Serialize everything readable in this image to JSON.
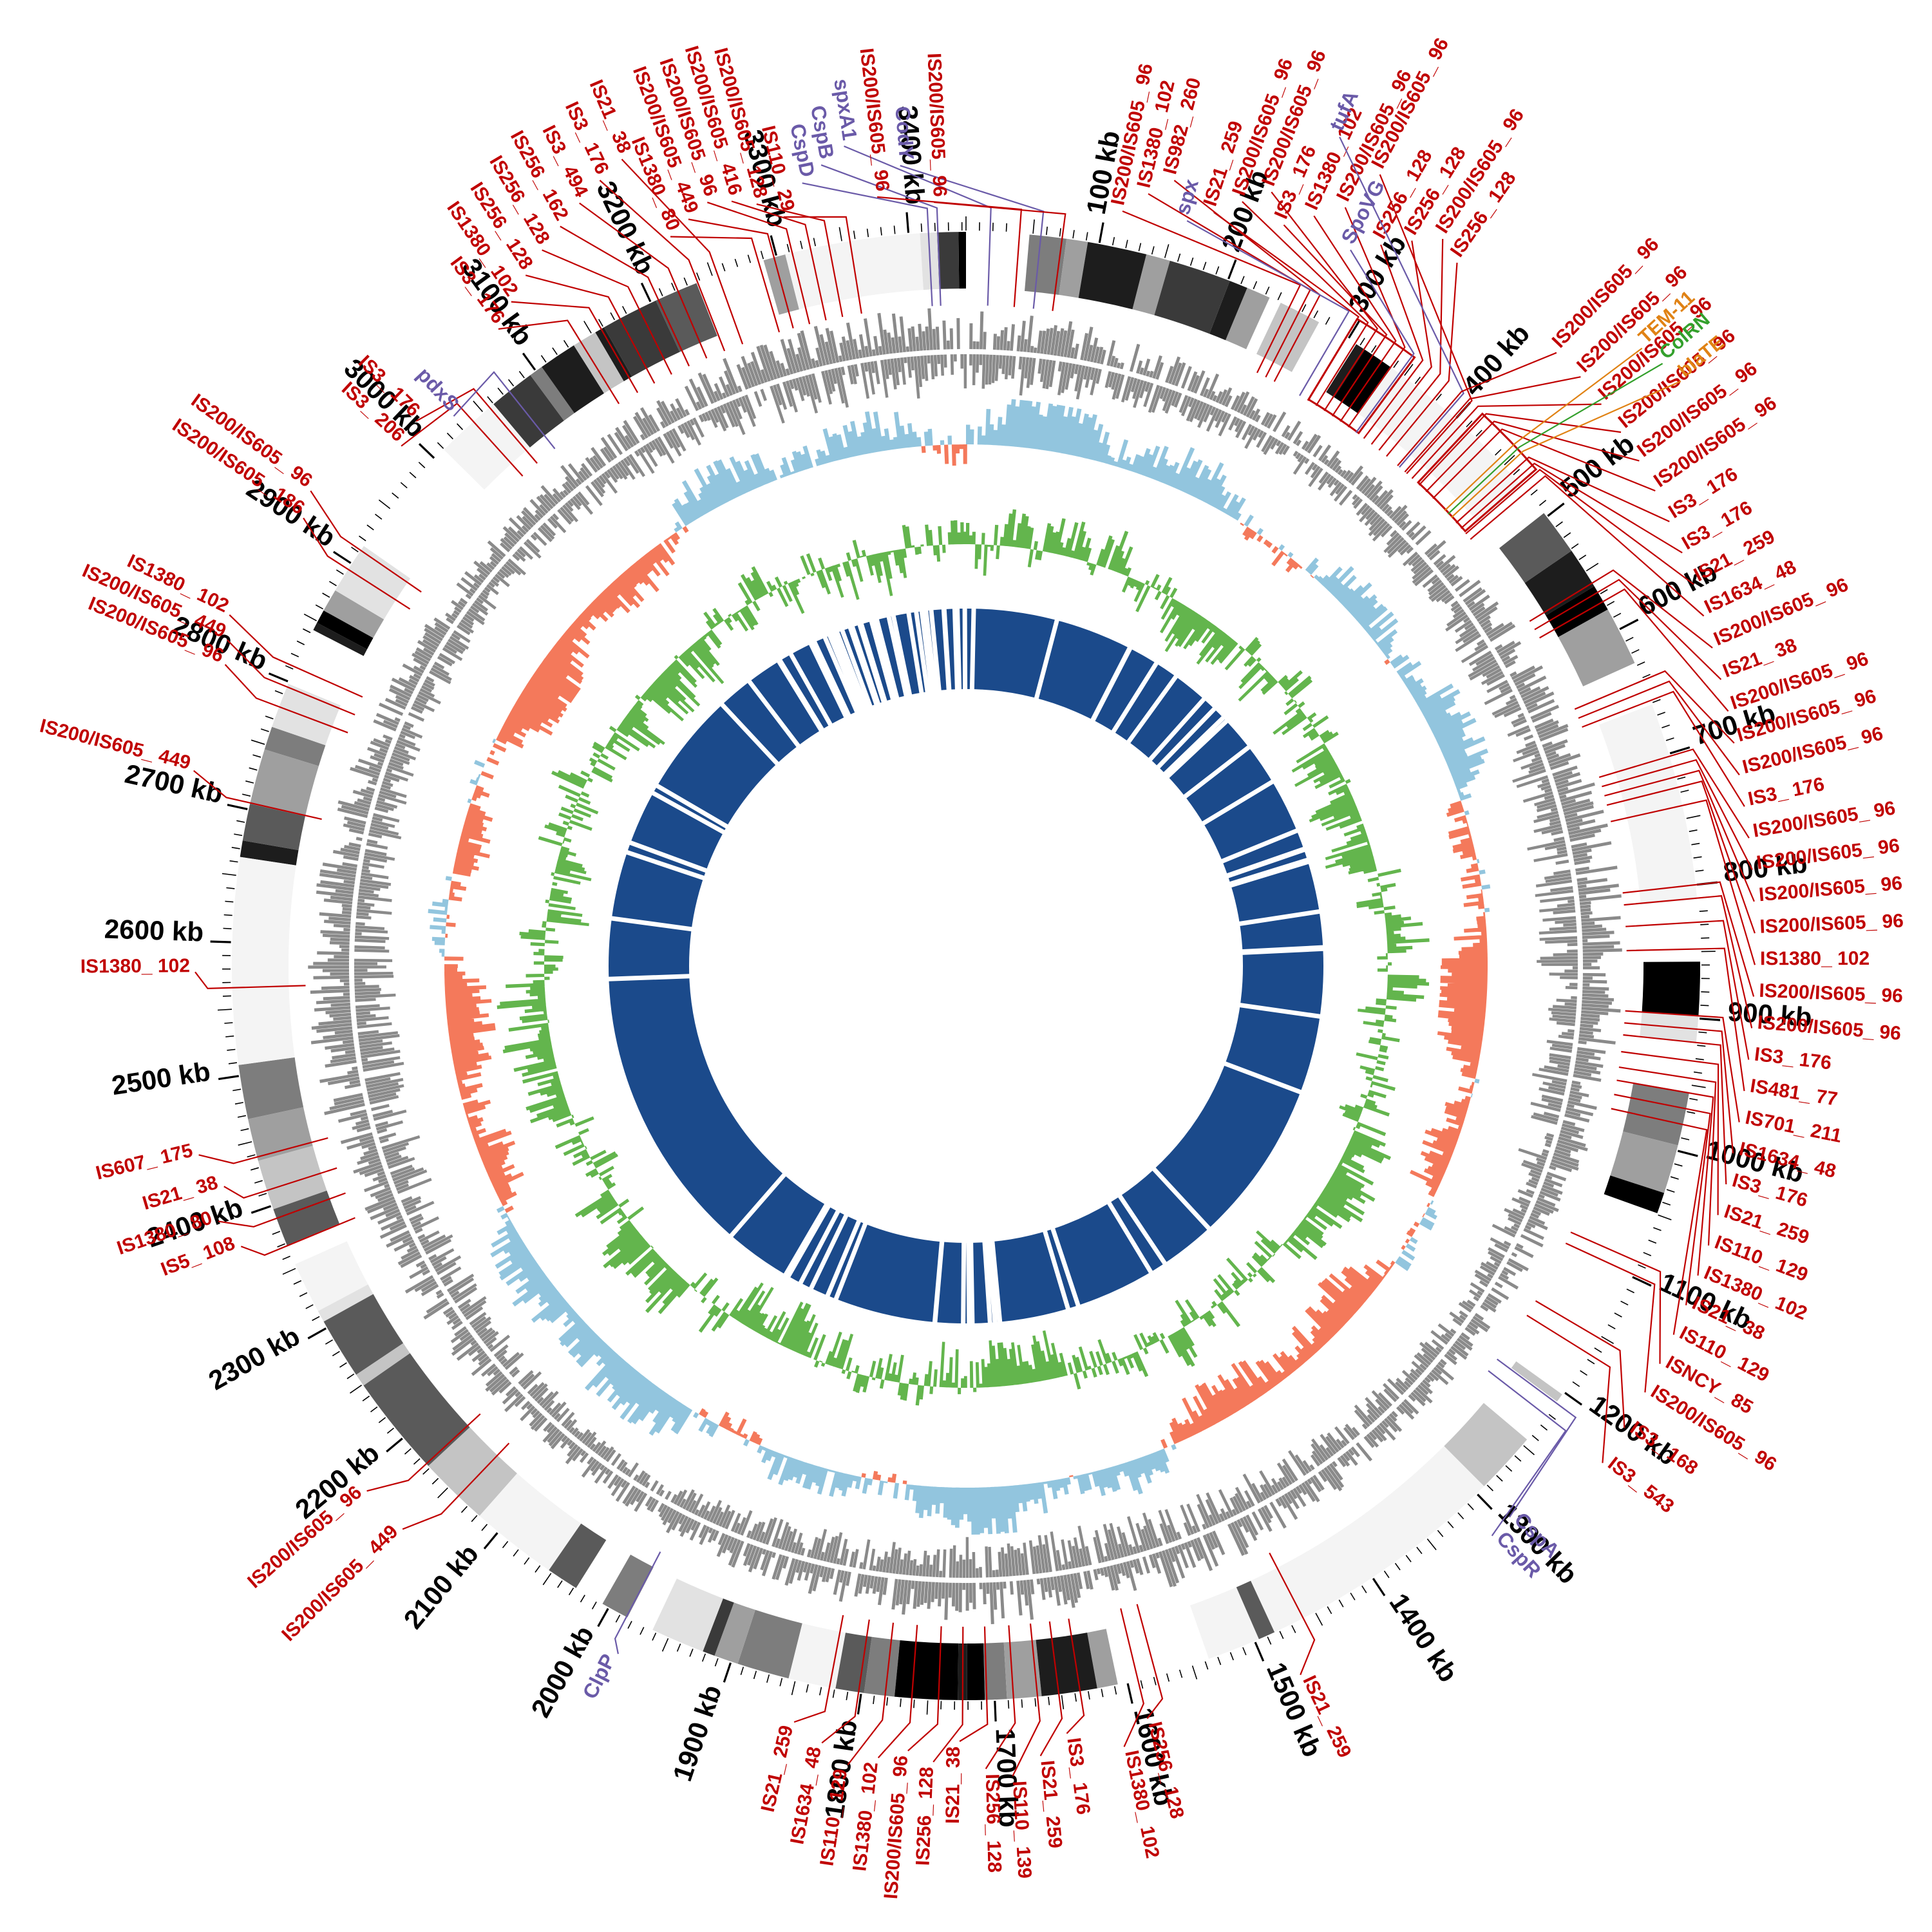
{
  "chart_data": {
    "type": "circular-genome-map",
    "genome_length_kb": 3443,
    "axis": {
      "unit": "kb",
      "tick_interval_kb": 100,
      "minor_tick_kb": 10,
      "font_size": 42,
      "labels": [
        "100 kb",
        "200 kb",
        "300 kb",
        "400 kb",
        "500 kb",
        "600 kb",
        "700 kb",
        "800 kb",
        "900 kb",
        "1000 kb",
        "1100 kb",
        "1200 kb",
        "1300 kb",
        "1400 kb",
        "1500 kb",
        "1600 kb",
        "1700 kb",
        "1800 kb",
        "1900 kb",
        "2000 kb",
        "2100 kb",
        "2200 kb",
        "2300 kb",
        "2400 kb",
        "2500 kb",
        "2600 kb",
        "2700 kb",
        "2800 kb",
        "2900 kb",
        "3000 kb",
        "3100 kb",
        "3200 kb",
        "3300 kb",
        "3400 kb"
      ]
    },
    "tracks": [
      {
        "id": "contig-ring",
        "type": "blocks",
        "desc": "outer grayscale contig / coverage blocks"
      },
      {
        "id": "is-mark-ring",
        "type": "ticks",
        "desc": "red marks at IS element positions"
      },
      {
        "id": "genes-forward",
        "type": "barcode",
        "desc": "gray CDS bars, outer strand row"
      },
      {
        "id": "genes-reverse",
        "type": "barcode",
        "desc": "gray CDS bars, inner strand row"
      },
      {
        "id": "gc-content",
        "type": "diverging-histogram",
        "desc": "blue above mean / orange below mean"
      },
      {
        "id": "gc-skew",
        "type": "diverging-histogram",
        "desc": "green spikes around baseline"
      },
      {
        "id": "core-ring",
        "type": "solid-ring",
        "desc": "navy ring with white gap ticks"
      }
    ],
    "colors": {
      "is_label": "#c00000",
      "gene_label": "#6a5aa8",
      "amr_orange": "#e08214",
      "amr_green": "#33a02c",
      "axis": "#000000",
      "gc_pos": "#92c5de",
      "gc_neg": "#f4795b",
      "skew": "#63b54d",
      "genes_track": "#8a8a8a",
      "core_ring": "#1b4a8b",
      "contig_palette": [
        "#000000",
        "#1d1d1d",
        "#3a3a3a",
        "#5a5a5a",
        "#7d7d7d",
        "#9f9f9f",
        "#c4c4c4",
        "#e2e2e2",
        "#f4f4f4",
        "#ffffff"
      ]
    },
    "highlight_boxes": [
      [
        298,
        348
      ],
      [
        412,
        468
      ]
    ],
    "feature_label_fields": [
      "text",
      "type",
      "target_kb",
      "label_kb",
      "label_radius"
    ],
    "feature_labels": [
      [
        "IS3_ 206",
        "is",
        3040,
        2990,
        1200
      ],
      [
        "IS3_ 176",
        "is",
        3056,
        3010,
        1210
      ],
      [
        "pdxS",
        "gene",
        3075,
        3032,
        1175
      ],
      [
        "IS3_ 176",
        "is",
        3140,
        3096,
        1235
      ],
      [
        "IS1380_ 102",
        "is",
        3158,
        3114,
        1258
      ],
      [
        "IS256_ 128",
        "is",
        3174,
        3132,
        1280
      ],
      [
        "IS256_ 128",
        "is",
        3190,
        3150,
        1300
      ],
      [
        "IS256_ 162",
        "is",
        3206,
        3168,
        1318
      ],
      [
        "IS3_ 494",
        "is",
        3222,
        3186,
        1336
      ],
      [
        "IS3_ 176",
        "is",
        3238,
        3204,
        1354
      ],
      [
        "IS21_ 38",
        "is",
        3254,
        3222,
        1370
      ],
      [
        "IS1380_ 80",
        "is",
        3286,
        3232,
        1230
      ],
      [
        "IS200/IS605_ 449",
        "is",
        3298,
        3248,
        1245
      ],
      [
        "IS200/IS605_ 96",
        "is",
        3312,
        3264,
        1260
      ],
      [
        "IS200/IS605_ 416",
        "is",
        3326,
        3280,
        1250
      ],
      [
        "IS200/IS605_ 128",
        "is",
        3340,
        3296,
        1235
      ],
      [
        "IS110_ 29",
        "is",
        3356,
        3312,
        1205
      ],
      [
        "CspD",
        "gene",
        3415,
        3330,
        1250
      ],
      [
        "CspB",
        "gene",
        3422,
        3345,
        1272
      ],
      [
        "spxA1",
        "gene",
        18,
        3362,
        1295
      ],
      [
        "IS200/IS605_ 96",
        "is",
        40,
        3380,
        1210
      ],
      [
        "CodY",
        "gene",
        56,
        3398,
        1255
      ],
      [
        "IS200/IS605_ 96",
        "is",
        72,
        3420,
        1195
      ],
      [
        "IS200/IS605_ 96",
        "is",
        250,
        112,
        1205
      ],
      [
        "IS1380_ 102",
        "is",
        258,
        127,
        1240
      ],
      [
        "IS982_ 260",
        "is",
        266,
        142,
        1270
      ],
      [
        "spx",
        "gene",
        290,
        158,
        1215
      ],
      [
        "IS21_ 259",
        "is",
        298,
        174,
        1240
      ],
      [
        "IS200/IS605_ 96",
        "is",
        306,
        190,
        1270
      ],
      [
        "IS200/IS605_ 96",
        "is",
        314,
        206,
        1300
      ],
      [
        "IS3_ 176",
        "is",
        322,
        222,
        1260
      ],
      [
        "IS1380_ 102",
        "is",
        330,
        238,
        1292
      ],
      [
        "IS200/IS605_ 96",
        "is",
        338,
        254,
        1325
      ],
      [
        "SpoVG",
        "gene",
        346,
        270,
        1270
      ],
      [
        "IS256_ 128",
        "is",
        354,
        286,
        1300
      ],
      [
        "IS256_ 128",
        "is",
        362,
        302,
        1330
      ],
      [
        "IS200/IS605_ 96",
        "is",
        370,
        318,
        1358
      ],
      [
        "IS256_ 128",
        "is",
        378,
        334,
        1340
      ],
      [
        "tufA",
        "gene",
        392,
        232,
        1420
      ],
      [
        "IS200/IS605_ 96",
        "is",
        400,
        264,
        1395
      ],
      [
        "IS200/IS605_ 96",
        "is",
        390,
        420,
        1330
      ],
      [
        "IS200/IS605_ 96",
        "is",
        398,
        442,
        1330
      ],
      [
        "IS200/IS605_ 96",
        "is",
        406,
        464,
        1325
      ],
      [
        "IS200/IS605_ 96",
        "is",
        414,
        486,
        1320
      ],
      [
        "IS200/IS605_ 96",
        "is",
        422,
        508,
        1315
      ],
      [
        "IS200/IS605_ 96",
        "is",
        430,
        530,
        1308
      ],
      [
        "TEM-11",
        "amr_o",
        444,
        455,
        1430
      ],
      [
        "ColRN",
        "amr_g",
        448,
        470,
        1438
      ],
      [
        "blaTE",
        "amr_o",
        452,
        485,
        1442
      ],
      [
        "IS3_ 176",
        "is",
        458,
        552,
        1300
      ],
      [
        "IS3_ 176",
        "is",
        464,
        574,
        1292
      ],
      [
        "IS21_ 259",
        "is",
        470,
        596,
        1284
      ],
      [
        "IS1634_ 48",
        "is",
        476,
        618,
        1276
      ],
      [
        "IS200/IS605_ 96",
        "is",
        560,
        640,
        1268
      ],
      [
        "IS21_ 38",
        "is",
        568,
        662,
        1262
      ],
      [
        "IS200/IS605_ 96",
        "is",
        576,
        684,
        1256
      ],
      [
        "IS200/IS605_ 96",
        "is",
        642,
        706,
        1250
      ],
      [
        "IS200/IS605_ 96",
        "is",
        650,
        728,
        1245
      ],
      [
        "IS3_ 176",
        "is",
        658,
        750,
        1242
      ],
      [
        "IS200/IS605_ 96",
        "is",
        702,
        772,
        1240
      ],
      [
        "IS200/IS605_ 96",
        "is",
        710,
        794,
        1238
      ],
      [
        "IS200/IS605_ 96",
        "is",
        718,
        816,
        1236
      ],
      [
        "IS200/IS605_ 96",
        "is",
        726,
        838,
        1234
      ],
      [
        "IS1380_ 102",
        "is",
        740,
        860,
        1233
      ],
      [
        "IS200/IS605_ 96",
        "is",
        800,
        882,
        1232
      ],
      [
        "IS200/IS605_ 96",
        "is",
        810,
        904,
        1232
      ],
      [
        "IS3_ 176",
        "is",
        828,
        926,
        1232
      ],
      [
        "IS481_ 77",
        "is",
        848,
        948,
        1232
      ],
      [
        "IS701_ 211",
        "is",
        898,
        970,
        1233
      ],
      [
        "IS1634_ 48",
        "is",
        908,
        992,
        1234
      ],
      [
        "IS3_ 176",
        "is",
        918,
        1014,
        1236
      ],
      [
        "IS21_ 259",
        "is",
        932,
        1036,
        1238
      ],
      [
        "IS110_ 129",
        "is",
        945,
        1058,
        1240
      ],
      [
        "IS1380_ 102",
        "is",
        956,
        1080,
        1242
      ],
      [
        "IS21_ 38",
        "is",
        968,
        1102,
        1244
      ],
      [
        "IS110_ 129",
        "is",
        980,
        1124,
        1247
      ],
      [
        "ISNCY_ 85",
        "is",
        1088,
        1146,
        1250
      ],
      [
        "IS200/IS605_ 96",
        "is",
        1098,
        1168,
        1253
      ],
      [
        "IS3_ 168",
        "is",
        1152,
        1196,
        1257
      ],
      [
        "IS3_ 543",
        "is",
        1166,
        1224,
        1262
      ],
      [
        "CspA",
        "gene",
        1210,
        1295,
        1210
      ],
      [
        "CspR",
        "gene",
        1222,
        1313,
        1212
      ],
      [
        "IS21_ 259",
        "is",
        1460,
        1480,
        1225
      ],
      [
        "IS256_ 128",
        "is",
        1578,
        1592,
        1210
      ],
      [
        "IS1380_ 102",
        "is",
        1592,
        1612,
        1245
      ],
      [
        "IS3_ 176",
        "is",
        1636,
        1650,
        1210
      ],
      [
        "IS21_ 259",
        "is",
        1652,
        1670,
        1240
      ],
      [
        "IS110_ 139",
        "is",
        1668,
        1690,
        1268
      ],
      [
        "IS256_ 128",
        "is",
        1686,
        1708,
        1255
      ],
      [
        "IS21_ 38",
        "is",
        1706,
        1726,
        1212
      ],
      [
        "IS256_ 128",
        "is",
        1724,
        1744,
        1245
      ],
      [
        "IS200/IS605_ 96",
        "is",
        1742,
        1762,
        1230
      ],
      [
        "IS1380_ 102",
        "is",
        1762,
        1782,
        1245
      ],
      [
        "IS110_ 129",
        "is",
        1782,
        1802,
        1262
      ],
      [
        "IS1634_ 48",
        "is",
        1802,
        1822,
        1235
      ],
      [
        "IS21_ 259",
        "is",
        1824,
        1844,
        1212
      ],
      [
        "ClpP",
        "gene",
        1985,
        1978,
        1205
      ],
      [
        "IS200/IS605_ 449",
        "is",
        2140,
        2152,
        1245
      ],
      [
        "IS200/IS605_ 96",
        "is",
        2174,
        2188,
        1245
      ],
      [
        "IS5_ 108",
        "is",
        2368,
        2380,
        1215
      ],
      [
        "IS1380_ 80",
        "is",
        2390,
        2402,
        1235
      ],
      [
        "IS21_ 38",
        "is",
        2412,
        2424,
        1210
      ],
      [
        "IS607_ 175",
        "is",
        2438,
        2450,
        1235
      ],
      [
        "IS1380_ 102",
        "is",
        2566,
        2578,
        1205
      ],
      [
        "IS200/IS605_ 449",
        "is",
        2705,
        2718,
        1245
      ],
      [
        "IS200/IS605_ 96",
        "is",
        2780,
        2794,
        1250
      ],
      [
        "IS200/IS605_ 449",
        "is",
        2796,
        2810,
        1262
      ],
      [
        "IS1380_ 102",
        "is",
        2812,
        2826,
        1275
      ],
      [
        "IS200/IS605_ 186",
        "is",
        2895,
        2908,
        1250
      ],
      [
        "IS200/IS605_ 96",
        "is",
        2912,
        2926,
        1265
      ]
    ],
    "render": {
      "seed": 7,
      "radii": {
        "core_in": 430,
        "core_out": 555,
        "skew_base": 655,
        "skew_amp": 76,
        "gc_base": 810,
        "gc_amp": 73,
        "gene_out_base": 958,
        "gene_in_base": 950,
        "gene_len": 58,
        "red_in": 1026,
        "red_out": 1048,
        "contig_in": 1052,
        "contig_out": 1140,
        "tick_in": 1142,
        "axis_r": 1185,
        "elbow": 1178
      },
      "label_font_size": 30,
      "gene_label_font_size": 32
    }
  }
}
